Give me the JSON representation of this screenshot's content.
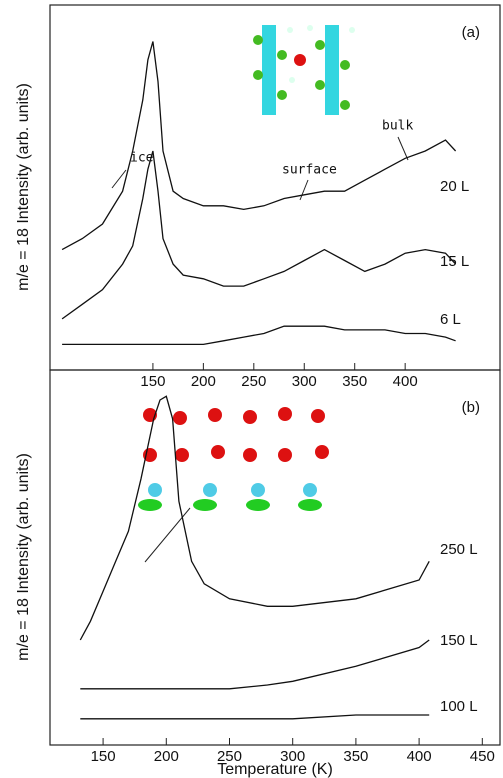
{
  "chart_data": [
    {
      "type": "line",
      "panel": "(a)",
      "y_label": "m/e = 18 Intensity (arb. units)",
      "annotations": [
        "ice",
        "surface",
        "bulk"
      ],
      "x": [
        60,
        80,
        100,
        120,
        130,
        140,
        145,
        150,
        155,
        160,
        170,
        180,
        200,
        220,
        240,
        260,
        280,
        300,
        320,
        340,
        360,
        380,
        400,
        420,
        440,
        450
      ],
      "xlim": [
        48,
        494
      ],
      "xticks": [
        150,
        200,
        250,
        300,
        350,
        400
      ],
      "ylim": [
        0,
        100
      ],
      "series": [
        {
          "name": "20 L",
          "color": "#111111",
          "values": [
            33,
            36,
            40,
            49,
            60,
            74,
            85,
            90,
            79,
            60,
            49,
            47,
            45,
            45,
            44,
            45,
            47,
            48,
            49,
            49,
            52,
            55,
            58,
            60,
            63,
            60
          ]
        },
        {
          "name": "15 L",
          "color": "#111111",
          "values": [
            14,
            18,
            22,
            29,
            34,
            47,
            55,
            60,
            49,
            36,
            29,
            26,
            25,
            23,
            23,
            25,
            27,
            30,
            33,
            30,
            27,
            29,
            32,
            33,
            32,
            29
          ]
        },
        {
          "name": "6 L",
          "color": "#111111",
          "values": [
            7,
            7,
            7,
            7,
            7,
            7,
            7,
            7,
            7,
            7,
            7,
            7,
            7,
            8,
            9,
            10,
            12,
            12,
            12,
            11,
            11,
            11,
            10,
            10,
            9,
            8
          ]
        }
      ]
    },
    {
      "type": "line",
      "panel": "(b)",
      "y_label": "m/e = 18 Intensity (arb. units)",
      "x_label": "Temperature (K)",
      "x": [
        132,
        140,
        150,
        160,
        170,
        180,
        190,
        195,
        200,
        205,
        210,
        220,
        230,
        250,
        280,
        300,
        350,
        400,
        408
      ],
      "xlim": [
        108,
        464
      ],
      "xticks": [
        150,
        200,
        250,
        300,
        350,
        400,
        450
      ],
      "ylim": [
        0,
        100
      ],
      "series": [
        {
          "name": "250 L",
          "color": "#111111",
          "values": [
            28,
            33,
            41,
            49,
            57,
            71,
            87,
            92,
            93,
            87,
            65,
            49,
            43,
            39,
            37,
            37,
            39,
            44,
            49
          ]
        },
        {
          "name": "150 L",
          "color": "#111111",
          "values": [
            15,
            15,
            15,
            15,
            15,
            15,
            15,
            15,
            15,
            15,
            15,
            15,
            15,
            15,
            16,
            17,
            21,
            26,
            28
          ]
        },
        {
          "name": "100 L",
          "color": "#111111",
          "values": [
            7,
            7,
            7,
            7,
            7,
            7,
            7,
            7,
            7,
            7,
            7,
            7,
            7,
            7,
            7,
            7,
            8,
            8,
            8
          ]
        }
      ]
    }
  ]
}
